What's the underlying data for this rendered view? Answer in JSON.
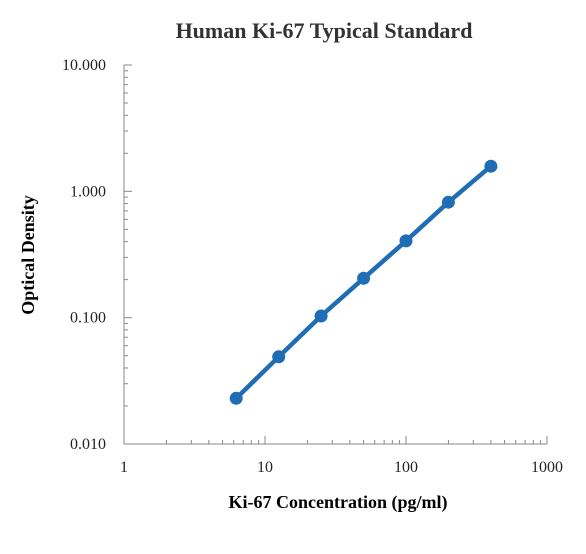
{
  "chart_data": {
    "type": "line",
    "title": "Human Ki-67 Typical Standard",
    "xlabel": "Ki-67 Concentration (pg/ml)",
    "ylabel": "Optical Density",
    "x_scale": "log",
    "y_scale": "log",
    "xlim": [
      1,
      1000
    ],
    "ylim": [
      0.01,
      10
    ],
    "x_ticks": [
      "1",
      "10",
      "100",
      "1000"
    ],
    "y_ticks": [
      "0.010",
      "0.100",
      "1.000",
      "10.000"
    ],
    "grid": false,
    "legend": "none",
    "series": [
      {
        "x": [
          6.25,
          12.5,
          25,
          50,
          100,
          200,
          400
        ],
        "y": [
          0.023,
          0.049,
          0.103,
          0.205,
          0.405,
          0.82,
          1.58
        ],
        "color": "#1f6db5"
      }
    ]
  }
}
